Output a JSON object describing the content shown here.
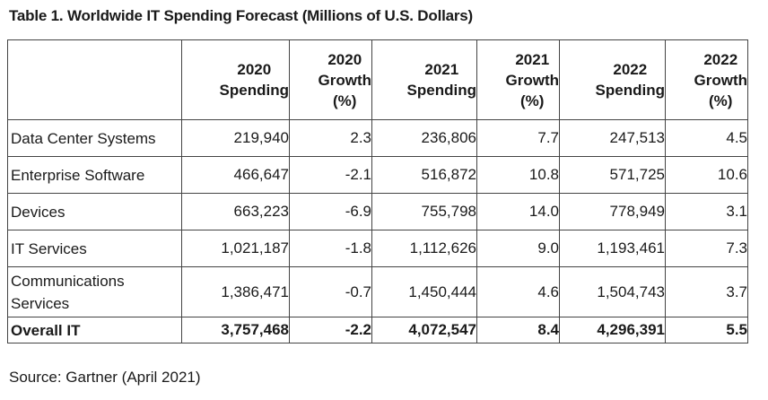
{
  "title": "Table 1. Worldwide IT Spending Forecast (Millions of U.S. Dollars)",
  "headers": [
    [
      "2020",
      "Spending"
    ],
    [
      "2020",
      "Growth",
      "(%)"
    ],
    [
      "2021",
      "Spending"
    ],
    [
      "2021",
      "Growth",
      "(%)"
    ],
    [
      "2022",
      "Spending"
    ],
    [
      "2022",
      "Growth",
      "(%)"
    ]
  ],
  "rows": [
    {
      "label": "Data Center Systems",
      "values": [
        "219,940",
        "2.3",
        "236,806",
        "7.7",
        "247,513",
        "4.5"
      ]
    },
    {
      "label": "Enterprise Software",
      "values": [
        "466,647",
        "-2.1",
        "516,872",
        "10.8",
        "571,725",
        "10.6"
      ]
    },
    {
      "label": "Devices",
      "values": [
        "663,223",
        "-6.9",
        "755,798",
        "14.0",
        "778,949",
        "3.1"
      ]
    },
    {
      "label": "IT Services",
      "values": [
        "1,021,187",
        "-1.8",
        "1,112,626",
        "9.0",
        "1,193,461",
        "7.3"
      ]
    },
    {
      "label": "Communications Services",
      "values": [
        "1,386,471",
        "-0.7",
        "1,450,444",
        "4.6",
        "1,504,743",
        "3.7"
      ]
    }
  ],
  "total": {
    "label": "Overall IT",
    "values": [
      "3,757,468",
      "-2.2",
      "4,072,547",
      "8.4",
      "4,296,391",
      "5.5"
    ]
  },
  "source": "Source: Gartner (April 2021)"
}
